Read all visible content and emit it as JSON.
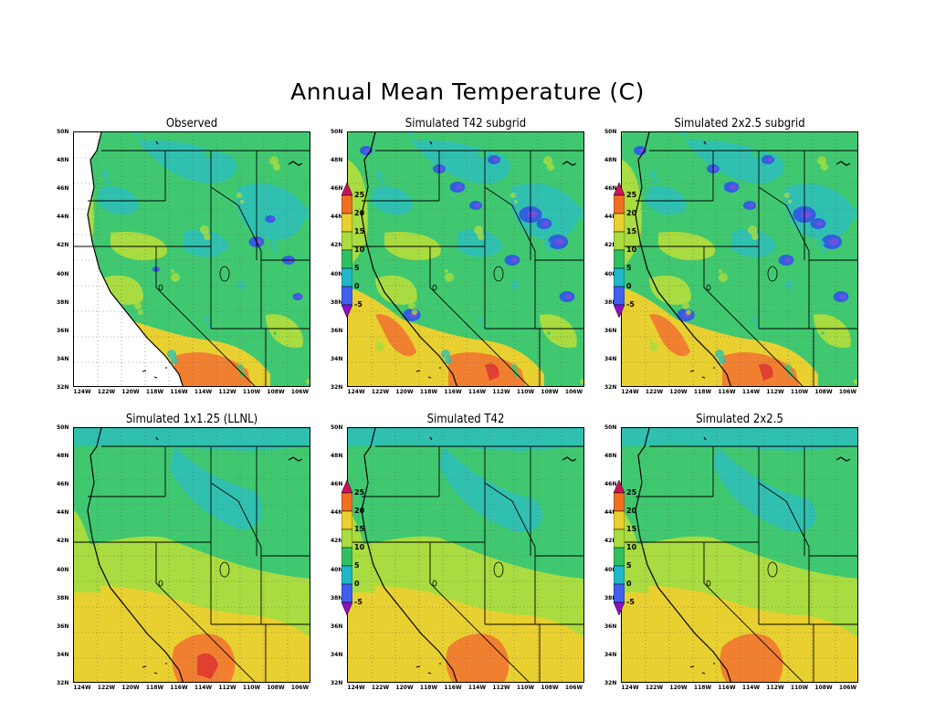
{
  "figure": {
    "title": "Annual Mean Temperature (C)"
  },
  "panels": [
    {
      "id": "observed",
      "title": "Observed",
      "row": 0,
      "col": 0
    },
    {
      "id": "t42_subgrid",
      "title": "Simulated T42 subgrid",
      "row": 0,
      "col": 1
    },
    {
      "id": "2x25_subgrid",
      "title": "Simulated 2x2.5 subgrid",
      "row": 0,
      "col": 2
    },
    {
      "id": "llnl",
      "title": "Simulated 1x1.25 (LLNL)",
      "row": 1,
      "col": 0
    },
    {
      "id": "t42",
      "title": "Simulated T42",
      "row": 1,
      "col": 1
    },
    {
      "id": "2x25",
      "title": "Simulated 2x2.5",
      "row": 1,
      "col": 2
    }
  ],
  "axes": {
    "lat_labels": [
      "50N",
      "48N",
      "46N",
      "44N",
      "42N",
      "40N",
      "38N",
      "36N",
      "34N",
      "32N"
    ],
    "lon_labels": [
      "124W",
      "122W",
      "120W",
      "118W",
      "116W",
      "114W",
      "112W",
      "110W",
      "108W",
      "106W"
    ]
  },
  "colorbar": {
    "labels": [
      "25",
      "20",
      "15",
      "10",
      "5",
      "0",
      "-5"
    ],
    "colors": [
      "#d0105a",
      "#f07020",
      "#e8d030",
      "#a8dc40",
      "#30c060",
      "#20b8c8",
      "#4060f0",
      "#9010c0"
    ]
  }
}
